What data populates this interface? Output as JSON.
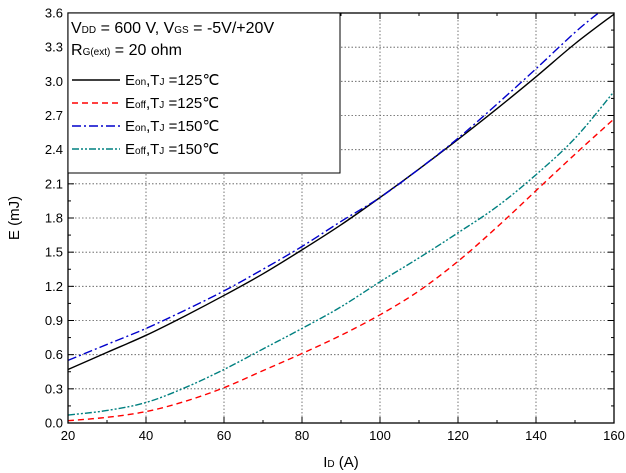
{
  "chart_data": {
    "type": "line",
    "title": "",
    "xlabel": {
      "main": "I",
      "sub": "D",
      "unit": " (A)"
    },
    "ylabel": "E (mJ)",
    "xlim": [
      20,
      160
    ],
    "ylim": [
      0.0,
      3.6
    ],
    "x_ticks": [
      "20",
      "40",
      "60",
      "80",
      "100",
      "120",
      "140",
      "160"
    ],
    "y_ticks": [
      "0.0",
      "0.3",
      "0.6",
      "0.9",
      "1.2",
      "1.5",
      "1.8",
      "2.1",
      "2.4",
      "2.7",
      "3.0",
      "3.3",
      "3.6"
    ],
    "grid": true,
    "legend_position": "top-left",
    "conditions": [
      {
        "parts": [
          [
            "V",
            ""
          ],
          [
            "DD",
            "sub"
          ],
          [
            " = 600 V, V",
            ""
          ],
          [
            "GS",
            "sub"
          ],
          [
            " = -5V/+20V",
            ""
          ]
        ]
      },
      {
        "parts": [
          [
            "R",
            ""
          ],
          [
            "G(ext)",
            "sub"
          ],
          [
            " = 20 ohm",
            ""
          ]
        ]
      }
    ],
    "series": [
      {
        "name": "Eon,TJ =125℃",
        "label_parts": [
          [
            "E",
            ""
          ],
          [
            "on",
            "sub"
          ],
          [
            ",T",
            ""
          ],
          [
            "J",
            "sub"
          ],
          [
            " =125℃",
            ""
          ]
        ],
        "color": "#000000",
        "dash": "",
        "x": [
          20,
          30,
          40,
          50,
          60,
          70,
          80,
          90,
          100,
          110,
          120,
          130,
          140,
          150,
          160
        ],
        "y": [
          0.47,
          0.62,
          0.77,
          0.94,
          1.12,
          1.31,
          1.52,
          1.74,
          1.98,
          2.23,
          2.49,
          2.76,
          3.04,
          3.33,
          3.59
        ]
      },
      {
        "name": "Eoff,TJ =125℃",
        "label_parts": [
          [
            "E",
            ""
          ],
          [
            "off",
            "sub"
          ],
          [
            ",T",
            ""
          ],
          [
            "J",
            "sub"
          ],
          [
            " =125℃",
            ""
          ]
        ],
        "color": "#ff0000",
        "dash": "6,4",
        "x": [
          20,
          30,
          40,
          50,
          60,
          70,
          80,
          90,
          100,
          110,
          120,
          130,
          140,
          150,
          160
        ],
        "y": [
          0.02,
          0.05,
          0.1,
          0.19,
          0.31,
          0.46,
          0.61,
          0.77,
          0.95,
          1.16,
          1.42,
          1.72,
          2.04,
          2.36,
          2.67
        ]
      },
      {
        "name": "Eon,TJ =150℃",
        "label_parts": [
          [
            "E",
            ""
          ],
          [
            "on",
            "sub"
          ],
          [
            ",T",
            ""
          ],
          [
            "J",
            "sub"
          ],
          [
            " =150℃",
            ""
          ]
        ],
        "color": "#0000cc",
        "dash": "9,3,2,3",
        "x": [
          20,
          30,
          40,
          50,
          60,
          70,
          80,
          90,
          100,
          110,
          120,
          130,
          140,
          150,
          156
        ],
        "y": [
          0.55,
          0.69,
          0.83,
          0.99,
          1.16,
          1.35,
          1.55,
          1.77,
          1.98,
          2.23,
          2.5,
          2.8,
          3.11,
          3.43,
          3.6
        ]
      },
      {
        "name": "Eoff,TJ =150℃",
        "label_parts": [
          [
            "E",
            ""
          ],
          [
            "off",
            "sub"
          ],
          [
            ",T",
            ""
          ],
          [
            "J",
            "sub"
          ],
          [
            " =150℃",
            ""
          ]
        ],
        "color": "#008080",
        "dash": "7,2,2,2,2,2",
        "x": [
          20,
          30,
          40,
          50,
          60,
          70,
          80,
          90,
          100,
          110,
          120,
          130,
          140,
          150,
          160
        ],
        "y": [
          0.07,
          0.11,
          0.18,
          0.31,
          0.47,
          0.65,
          0.83,
          1.02,
          1.24,
          1.45,
          1.67,
          1.9,
          2.18,
          2.5,
          2.91
        ]
      }
    ]
  }
}
